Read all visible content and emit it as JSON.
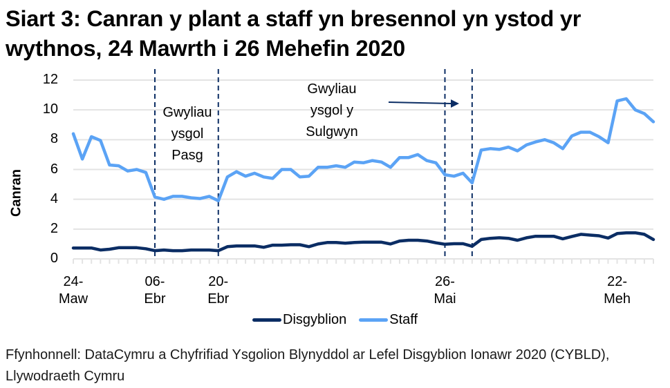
{
  "title": "Siart 3: Canran y plant a staff yn bresennol yn ystod yr wythnos, 24 Mawrth i 26 Mehefin 2020",
  "source": "Ffynhonnell: DataCymru a Chyfrifiad Ysgolion Blynyddol ar Lefel Disgyblion Ionawr 2020 (CYBLD), Llywodraeth Cymru",
  "annotations": {
    "easter": [
      "Gwyliau",
      "ysgol",
      "Pasg"
    ],
    "whitsun": [
      "Gwyliau",
      "ysgol y",
      "Sulgwyn"
    ]
  },
  "chart_data": {
    "type": "line",
    "title": "Siart 3: Canran y plant a staff yn bresennol yn ystod yr wythnos, 24 Mawrth i 26 Mehefin 2020",
    "xlabel": "",
    "ylabel": "Canran",
    "ylim": [
      0,
      12
    ],
    "yticks": [
      0,
      2,
      4,
      6,
      8,
      10,
      12
    ],
    "grid": true,
    "legend_position": "bottom",
    "x_tick_labels": [
      {
        "index": 0,
        "line1": "24-",
        "line2": "Maw"
      },
      {
        "index": 9,
        "line1": "06-",
        "line2": "Ebr"
      },
      {
        "index": 16,
        "line1": "20-",
        "line2": "Ebr"
      },
      {
        "index": 41,
        "line1": "26-",
        "line2": "Mai"
      },
      {
        "index": 60,
        "line1": "22-",
        "line2": "Meh"
      }
    ],
    "holiday_lines": [
      9,
      16,
      41,
      44
    ],
    "series": [
      {
        "name": "Disgyblion",
        "color": "#0b2d64",
        "values": [
          0.73,
          0.73,
          0.73,
          0.6,
          0.65,
          0.75,
          0.75,
          0.75,
          0.68,
          0.55,
          0.6,
          0.55,
          0.55,
          0.6,
          0.6,
          0.6,
          0.55,
          0.82,
          0.87,
          0.87,
          0.87,
          0.78,
          0.92,
          0.92,
          0.95,
          0.95,
          0.82,
          1.0,
          1.1,
          1.1,
          1.05,
          1.1,
          1.12,
          1.12,
          1.12,
          1.0,
          1.2,
          1.25,
          1.25,
          1.2,
          1.08,
          0.98,
          1.02,
          1.02,
          0.85,
          1.3,
          1.38,
          1.42,
          1.38,
          1.25,
          1.42,
          1.52,
          1.52,
          1.52,
          1.35,
          1.5,
          1.65,
          1.6,
          1.55,
          1.4,
          1.7,
          1.75,
          1.75,
          1.65,
          1.3
        ]
      },
      {
        "name": "Staff",
        "color": "#5ba3f5",
        "values": [
          8.4,
          6.7,
          8.2,
          7.95,
          6.3,
          6.25,
          5.9,
          6.0,
          5.8,
          4.15,
          4.0,
          4.2,
          4.2,
          4.1,
          4.05,
          4.2,
          3.9,
          5.5,
          5.85,
          5.55,
          5.75,
          5.5,
          5.4,
          6.0,
          6.0,
          5.5,
          5.55,
          6.15,
          6.15,
          6.25,
          6.15,
          6.5,
          6.45,
          6.6,
          6.5,
          6.15,
          6.8,
          6.8,
          7.0,
          6.6,
          6.45,
          5.65,
          5.55,
          5.75,
          5.1,
          7.3,
          7.4,
          7.35,
          7.5,
          7.25,
          7.65,
          7.85,
          8.0,
          7.8,
          7.4,
          8.25,
          8.5,
          8.5,
          8.2,
          7.8,
          10.6,
          10.75,
          10.0,
          9.75,
          9.2
        ]
      }
    ]
  }
}
